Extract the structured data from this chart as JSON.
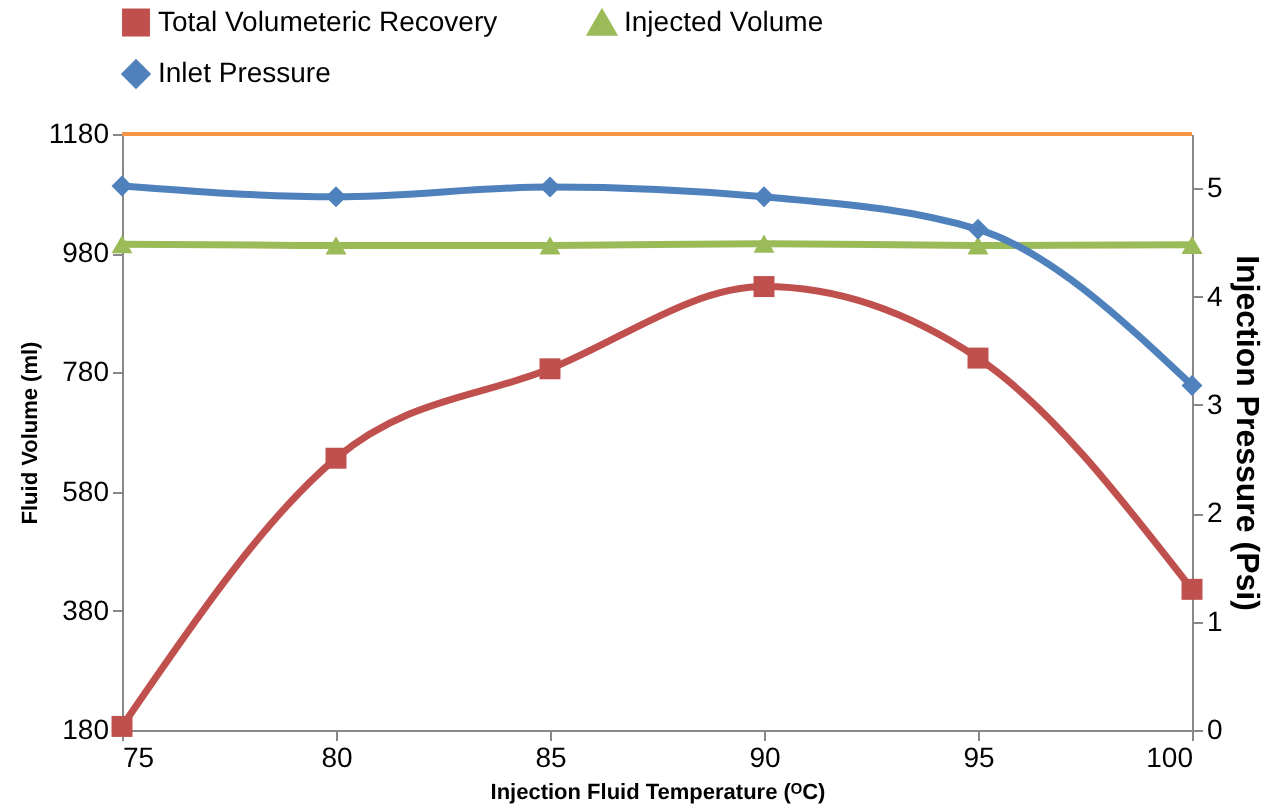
{
  "chart_data": {
    "type": "line",
    "x": [
      75,
      80,
      85,
      90,
      95,
      100
    ],
    "xlabel": "Injection Fluid Temperature (ᴼC)",
    "ylabel": "Fluid Volume  (ml)",
    "y2label": "Injection Pressure (Psi)",
    "xlim": [
      75,
      100
    ],
    "xticks": [
      75,
      80,
      85,
      90,
      95,
      100
    ],
    "ylim": [
      180,
      1180
    ],
    "yticks": [
      180,
      380,
      580,
      780,
      980,
      1180
    ],
    "y2lim": [
      0,
      5.5
    ],
    "y2ticks": [
      0,
      1,
      2,
      3,
      4,
      5
    ],
    "series": [
      {
        "name": "Total Volumeteric Recovery",
        "color": "#c0504d",
        "marker": "square",
        "values": [
          186,
          636,
          786,
          924,
          804,
          416
        ]
      },
      {
        "name": "Injected Volume",
        "color": "#9bbb59",
        "marker": "triangle",
        "values": [
          995,
          993,
          993,
          996,
          993,
          994
        ]
      },
      {
        "name": "Inlet Pressure",
        "color": "#4f81bd",
        "marker": "diamond",
        "axis": "y2",
        "values": [
          5.02,
          4.92,
          5.01,
          4.92,
          4.62,
          3.18
        ]
      }
    ],
    "ref_lines": [
      {
        "axis": "y",
        "value": 1180,
        "color": "#f79646"
      }
    ],
    "legend": "top",
    "grid": false,
    "line_style": "solid"
  }
}
